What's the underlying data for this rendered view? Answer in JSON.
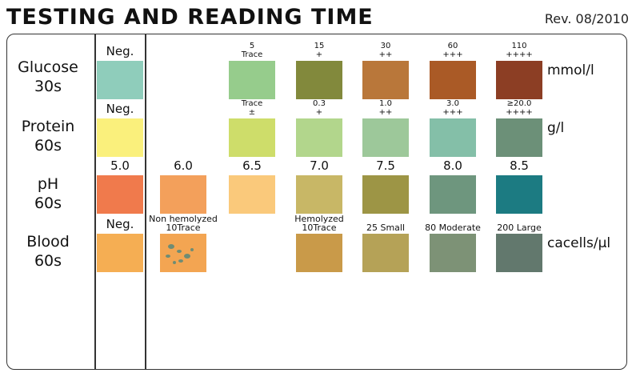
{
  "header": {
    "title": "TESTING AND READING TIME",
    "revision": "Rev. 08/2010"
  },
  "colors": {
    "frame": "#333333",
    "text": "#111111"
  },
  "chart_data": {
    "type": "table",
    "rows": [
      {
        "name": "Glucose",
        "time": "30s",
        "unit": "mmol/l",
        "pads": [
          {
            "col": 0,
            "label": [
              "Neg."
            ],
            "color": "#8fcdbb"
          },
          {
            "col": 2,
            "label": [
              "5",
              "Trace"
            ],
            "color": "#96cc8c"
          },
          {
            "col": 3,
            "label": [
              "15",
              "+"
            ],
            "color": "#82893c"
          },
          {
            "col": 4,
            "label": [
              "30",
              "++"
            ],
            "color": "#b9773a"
          },
          {
            "col": 5,
            "label": [
              "60",
              "+++"
            ],
            "color": "#aa5a26"
          },
          {
            "col": 6,
            "label": [
              "110",
              "++++"
            ],
            "color": "#8c3e24"
          }
        ]
      },
      {
        "name": "Protein",
        "time": "60s",
        "unit": "g/l",
        "pads": [
          {
            "col": 0,
            "label": [
              "Neg."
            ],
            "color": "#faf07c"
          },
          {
            "col": 2,
            "label": [
              "Trace",
              "±"
            ],
            "color": "#cedd6a"
          },
          {
            "col": 3,
            "label": [
              "0.3",
              "+"
            ],
            "color": "#b2d68c"
          },
          {
            "col": 4,
            "label": [
              "1.0",
              "++"
            ],
            "color": "#9dc89a"
          },
          {
            "col": 5,
            "label": [
              "3.0",
              "+++"
            ],
            "color": "#84bfa8"
          },
          {
            "col": 6,
            "label": [
              "≥20.0",
              "++++"
            ],
            "color": "#6c9078"
          }
        ]
      },
      {
        "name": "pH",
        "time": "60s",
        "unit": "",
        "pads": [
          {
            "col": 0,
            "label": [
              "5.0"
            ],
            "color": "#f07a4c"
          },
          {
            "col": 1,
            "label": [
              "6.0"
            ],
            "color": "#f3a05b"
          },
          {
            "col": 2,
            "label": [
              "6.5"
            ],
            "color": "#fac97b"
          },
          {
            "col": 3,
            "label": [
              "7.0"
            ],
            "color": "#c8b766"
          },
          {
            "col": 4,
            "label": [
              "7.5"
            ],
            "color": "#9d9545"
          },
          {
            "col": 5,
            "label": [
              "8.0"
            ],
            "color": "#6e967e"
          },
          {
            "col": 6,
            "label": [
              "8.5"
            ],
            "color": "#1c7b82"
          }
        ]
      },
      {
        "name": "Blood",
        "time": "60s",
        "unit": "cacells/μl",
        "pads": [
          {
            "col": 0,
            "label": [
              "Neg."
            ],
            "color": "#f5ae53"
          },
          {
            "col": 1,
            "label": [
              "Non hemolyzed",
              "10Trace"
            ],
            "color": "#f3a552",
            "spots": true
          },
          {
            "col": 3,
            "label": [
              "Hemolyzed",
              "10Trace"
            ],
            "color": "#c99a49"
          },
          {
            "col": 4,
            "label": [
              "25 Small"
            ],
            "color": "#b5a257"
          },
          {
            "col": 5,
            "label": [
              "80 Moderate"
            ],
            "color": "#7d9276"
          },
          {
            "col": 6,
            "label": [
              "200 Large"
            ],
            "color": "#62786d"
          }
        ]
      }
    ]
  }
}
